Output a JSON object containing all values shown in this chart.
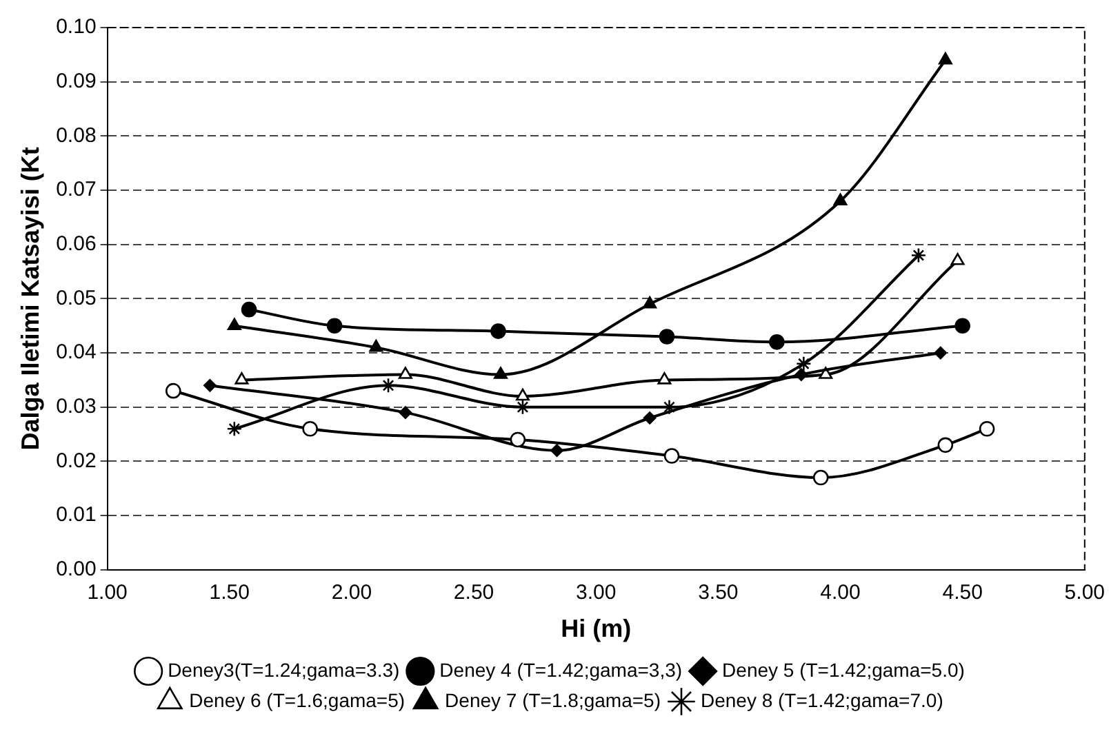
{
  "chart_data": {
    "type": "line",
    "xlabel": "Hi (m)",
    "ylabel": "Dalga Iletimi Katsayisi (Kt",
    "xlim": [
      1,
      5
    ],
    "xticks": [
      {
        "value": 1,
        "label": "1.00"
      },
      {
        "value": 1.5,
        "label": "1.50"
      },
      {
        "value": 2,
        "label": "2.00"
      },
      {
        "value": 2.5,
        "label": "2.50"
      },
      {
        "value": 3,
        "label": "3.00"
      },
      {
        "value": 3.5,
        "label": "3.50"
      },
      {
        "value": 4,
        "label": "4.00"
      },
      {
        "value": 4.5,
        "label": "4.50"
      },
      {
        "value": 5,
        "label": "5.00"
      }
    ],
    "ylim": [
      0,
      0.1
    ],
    "yticks": [
      {
        "value": 0,
        "label": "0.00"
      },
      {
        "value": 0.01,
        "label": "0.01"
      },
      {
        "value": 0.02,
        "label": "0.02"
      },
      {
        "value": 0.03,
        "label": "0.03"
      },
      {
        "value": 0.04,
        "label": "0.04"
      },
      {
        "value": 0.05,
        "label": "0.05"
      },
      {
        "value": 0.06,
        "label": "0.06"
      },
      {
        "value": 0.07,
        "label": "0.07"
      },
      {
        "value": 0.08,
        "label": "0.08"
      },
      {
        "value": 0.09,
        "label": "0.09"
      },
      {
        "value": 0.1,
        "label": "0.10"
      }
    ],
    "grid": "y",
    "legend": "bottom",
    "line_style": "solid",
    "series": [
      {
        "name": "Deney3(T=1.24;gama=3.3)",
        "color": "#000000",
        "marker": "circle",
        "x": [
          1.27,
          1.83,
          2.68,
          3.31,
          3.92,
          4.43,
          4.6
        ],
        "values": [
          0.033,
          0.026,
          0.024,
          0.021,
          0.017,
          0.023,
          0.026
        ]
      },
      {
        "name": "Deney 4 (T=1.42;gama=3,3)",
        "color": "#000000",
        "marker": "circle",
        "x": [
          1.58,
          1.93,
          2.6,
          3.29,
          3.74,
          4.5
        ],
        "values": [
          0.048,
          0.045,
          0.044,
          0.043,
          0.042,
          0.045
        ]
      },
      {
        "name": "Deney 5 (T=1.42;gama=5.0)",
        "color": "#000000",
        "marker": "diamond",
        "x": [
          1.42,
          2.22,
          2.84,
          3.22,
          3.84,
          4.41
        ],
        "values": [
          0.034,
          0.029,
          0.022,
          0.028,
          0.036,
          0.04
        ]
      },
      {
        "name": "Deney 6 (T=1.6;gama=5)",
        "color": "#000000",
        "marker": "triangle",
        "x": [
          1.55,
          2.22,
          2.7,
          3.28,
          3.94,
          4.48
        ],
        "values": [
          0.035,
          0.036,
          0.032,
          0.035,
          0.036,
          0.057
        ]
      },
      {
        "name": "Deney 7 (T=1.8;gama=5)",
        "color": "#000000",
        "marker": "triangle",
        "x": [
          1.52,
          2.1,
          2.61,
          3.22,
          4,
          4.43
        ],
        "values": [
          0.045,
          0.041,
          0.036,
          0.049,
          0.068,
          0.094
        ]
      },
      {
        "name": "Deney 8 (T=1.42;gama=7.0)",
        "color": "#000000",
        "marker": "cross",
        "x": [
          1.52,
          2.15,
          2.7,
          3.3,
          3.85,
          4.32
        ],
        "values": [
          0.026,
          0.034,
          0.03,
          0.03,
          0.038,
          0.058
        ]
      }
    ]
  }
}
